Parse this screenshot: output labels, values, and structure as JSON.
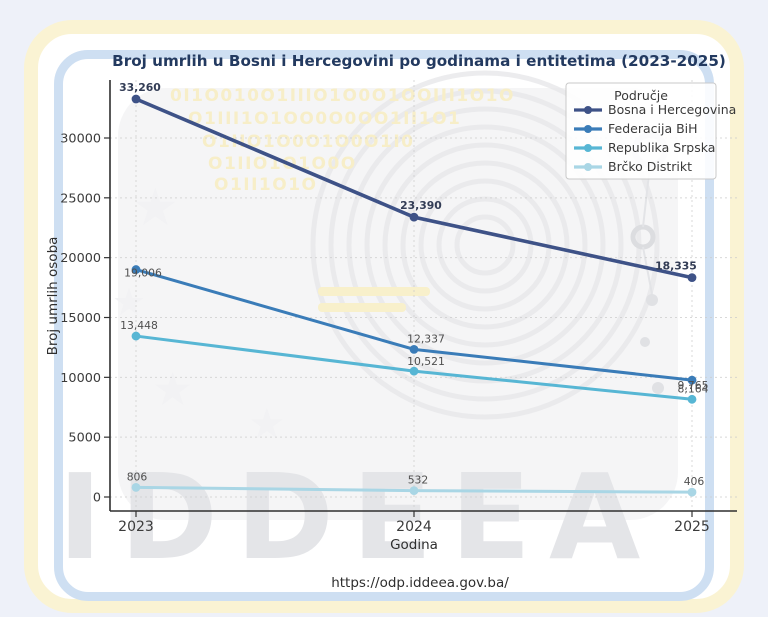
{
  "chart_data": {
    "type": "line",
    "title": "Broj umrlih u Bosni i Hercegovini po godinama i entitetima (2023-2025)",
    "xlabel": "Godina",
    "ylabel": "Broj umrlih osoba",
    "x": [
      "2023",
      "2024",
      "2025"
    ],
    "yticks": [
      0,
      5000,
      10000,
      15000,
      20000,
      25000,
      30000
    ],
    "ylim": [
      0,
      34800
    ],
    "grid": "dashed horizontal and vertical",
    "legend_title": "Područje",
    "legend_position": "upper right",
    "series": [
      {
        "name": "Bosna i Hercegovina",
        "values": [
          33260,
          23390,
          18335
        ],
        "color": "#3e5287",
        "emphasis": "bold"
      },
      {
        "name": "Federacija BiH",
        "values": [
          19006,
          12337,
          9765
        ],
        "color": "#3a7cb8",
        "emphasis": "normal"
      },
      {
        "name": "Republika Srpska",
        "values": [
          13448,
          10521,
          8164
        ],
        "color": "#57b6d4",
        "emphasis": "normal"
      },
      {
        "name": "Brčko Distrikt",
        "values": [
          806,
          532,
          406
        ],
        "color": "#a9d6e5",
        "emphasis": "normal"
      }
    ],
    "value_labels": [
      "33,260",
      "23,390",
      "18,335",
      "19,006",
      "12,337",
      "9,765",
      "13,448",
      "10,521",
      "8,164",
      "806",
      "532",
      "406"
    ]
  },
  "footer": {
    "url": "https://odp.iddeea.gov.ba/"
  },
  "watermark": {
    "brand": "IDDEEA",
    "binary_rows": [
      "0I1O010O1IIIO1O0O1OOIII1O1O",
      "O1III1O1OO0O0OO1II1O1",
      "O1IIO1O0O1O0O1I0",
      "O1IIO1O1O0O",
      "O1II1O1O"
    ]
  },
  "theme": {
    "page_background": "#eef1f9",
    "cream_frame": "#faf3d3",
    "blue_frame": "#cedff2",
    "gridline": "#cccccc",
    "title_color": "#233a60"
  }
}
